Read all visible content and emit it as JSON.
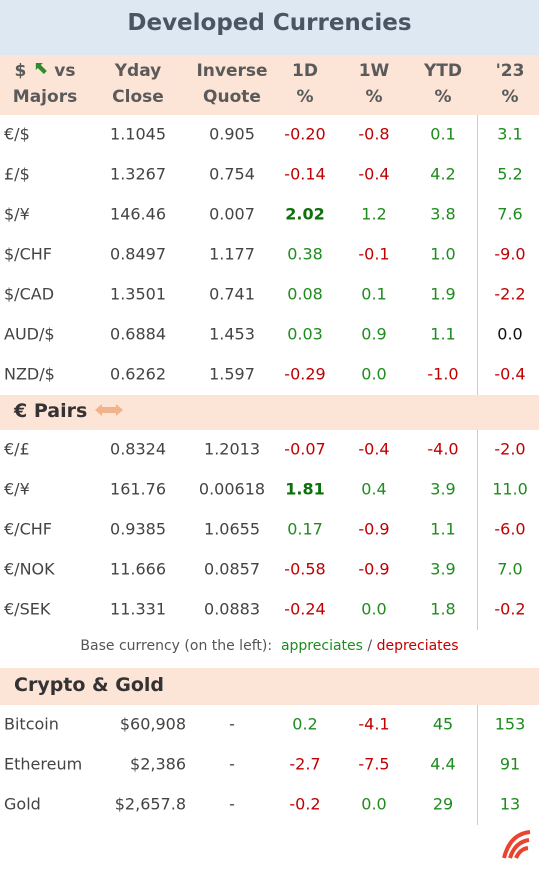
{
  "title": "Developed Currencies",
  "header": {
    "first": [
      "$",
      "vs",
      "Majors"
    ],
    "cols": [
      [
        "Yday",
        "Close"
      ],
      [
        "Inverse",
        "Quote"
      ],
      [
        "1D",
        "%"
      ],
      [
        "1W",
        "%"
      ],
      [
        "YTD",
        "%"
      ],
      [
        "'23",
        "%"
      ]
    ]
  },
  "majors": {
    "rows": [
      [
        "€/$",
        "1.1045",
        "0.905",
        "-0.20",
        "-0.8",
        "0.1",
        "3.1"
      ],
      [
        "£/$",
        "1.3267",
        "0.754",
        "-0.14",
        "-0.4",
        "4.2",
        "5.2"
      ],
      [
        "$/¥",
        "146.46",
        "0.007",
        "2.02",
        "1.2",
        "3.8",
        "7.6"
      ],
      [
        "$/CHF",
        "0.8497",
        "1.177",
        "0.38",
        "-0.1",
        "1.0",
        "-9.0"
      ],
      [
        "$/CAD",
        "1.3501",
        "0.741",
        "0.08",
        "0.1",
        "1.9",
        "-2.2"
      ],
      [
        "AUD/$",
        "0.6884",
        "1.453",
        "0.03",
        "0.9",
        "1.1",
        "0.0"
      ],
      [
        "NZD/$",
        "0.6262",
        "1.597",
        "-0.29",
        "0.0",
        "-1.0",
        "-0.4"
      ]
    ]
  },
  "pairs": {
    "title": "€ Pairs",
    "rows": [
      [
        "€/£",
        "0.8324",
        "1.2013",
        "-0.07",
        "-0.4",
        "-4.0",
        "-2.0"
      ],
      [
        "€/¥",
        "161.76",
        "0.00618",
        "1.81",
        "0.4",
        "3.9",
        "11.0"
      ],
      [
        "€/CHF",
        "0.9385",
        "1.0655",
        "0.17",
        "-0.9",
        "1.1",
        "-6.0"
      ],
      [
        "€/NOK",
        "11.666",
        "0.0857",
        "-0.58",
        "-0.9",
        "3.9",
        "7.0"
      ],
      [
        "€/SEK",
        "11.331",
        "0.0883",
        "-0.24",
        "0.0",
        "1.8",
        "-0.2"
      ]
    ]
  },
  "note": {
    "text": "Base currency (on the left):",
    "up": "appreciates",
    "sep": "/",
    "down": "depreciates"
  },
  "crypto": {
    "title": "Crypto & Gold",
    "rows": [
      [
        "Bitcoin",
        "$60,908",
        "-",
        "0.2",
        "-4.1",
        "45",
        "153"
      ],
      [
        "Ethereum",
        "$2,386",
        "-",
        "-2.7",
        "-7.5",
        "4.4",
        "91"
      ],
      [
        "Gold",
        "$2,657.8",
        "-",
        "-0.2",
        "0.0",
        "29",
        "13"
      ]
    ]
  }
}
